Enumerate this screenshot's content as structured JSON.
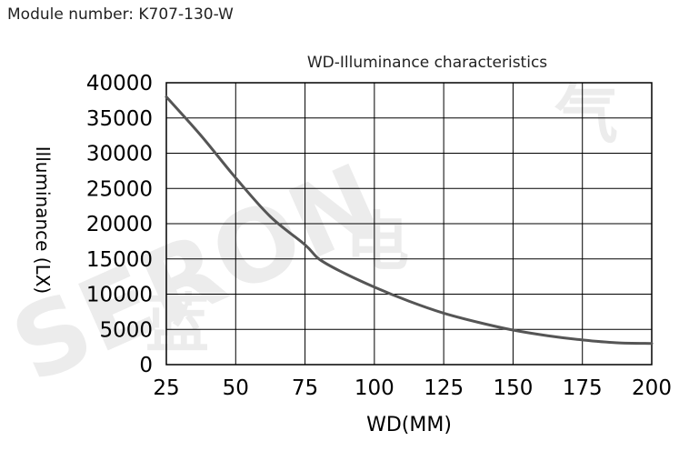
{
  "header": {
    "module_label": "Module number: K707-130-W"
  },
  "chart_data": {
    "type": "line",
    "title": "WD-Illuminance characteristics",
    "xlabel": "WD(MM)",
    "ylabel": "Illuminance (LX)",
    "xlim": [
      25,
      200
    ],
    "ylim": [
      0,
      40000
    ],
    "xticks": [
      25,
      50,
      75,
      100,
      125,
      150,
      175,
      200
    ],
    "yticks": [
      0,
      5000,
      10000,
      15000,
      20000,
      25000,
      30000,
      35000,
      40000
    ],
    "grid": true,
    "line_color": "#555555",
    "series": [
      {
        "x": [
          25,
          37.5,
          50,
          62.5,
          75,
          80,
          87.5,
          100,
          112.5,
          125,
          137.5,
          150,
          162.5,
          175,
          187.5,
          200
        ],
        "y": [
          38000,
          32500,
          26500,
          21000,
          17000,
          15000,
          13300,
          11000,
          9000,
          7300,
          6000,
          4900,
          4100,
          3500,
          3100,
          3000
        ]
      }
    ]
  }
}
